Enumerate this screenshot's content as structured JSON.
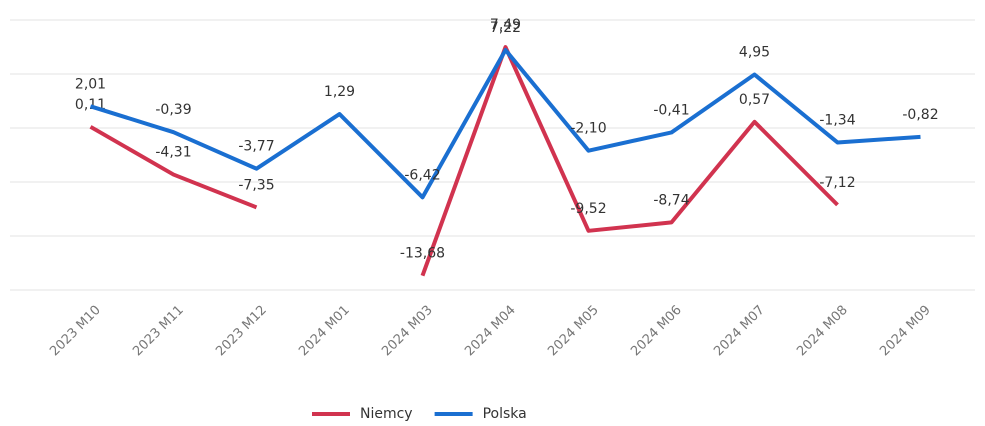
{
  "chart_data": {
    "type": "line",
    "categories": [
      "2023 M10",
      "2023 M11",
      "2023 M12",
      "2024 M01",
      "2024 M03",
      "2024 M04",
      "2024 M05",
      "2024 M06",
      "2024 M07",
      "2024 M08",
      "2024 M09"
    ],
    "series": [
      {
        "name": "Niemcy",
        "color": "#d1334f",
        "values": [
          0.11,
          -4.31,
          -7.35,
          null,
          -13.68,
          7.49,
          -9.52,
          -8.74,
          0.57,
          -7.12,
          null
        ],
        "value_labels": [
          "0,11",
          "-4,31",
          "-7,35",
          null,
          "-13,68",
          "7,49",
          "-9,52",
          "-8,74",
          "0,57",
          "-7,12",
          null
        ]
      },
      {
        "name": "Polska",
        "color": "#1a6fd1",
        "values": [
          2.01,
          -0.39,
          -3.77,
          1.29,
          -6.42,
          7.22,
          -2.1,
          -0.41,
          4.95,
          -1.34,
          -0.82
        ],
        "value_labels": [
          "2,01",
          "-0,39",
          "-3,77",
          "1,29",
          "-6,42",
          "7,22",
          "-2,10",
          "-0,41",
          "4,95",
          "-1,34",
          "-0,82"
        ]
      }
    ],
    "ylim": [
      -15,
      10
    ],
    "yticks": [
      -15,
      -10,
      -5,
      0,
      5,
      10
    ],
    "grid": true,
    "legend": "bottom"
  }
}
